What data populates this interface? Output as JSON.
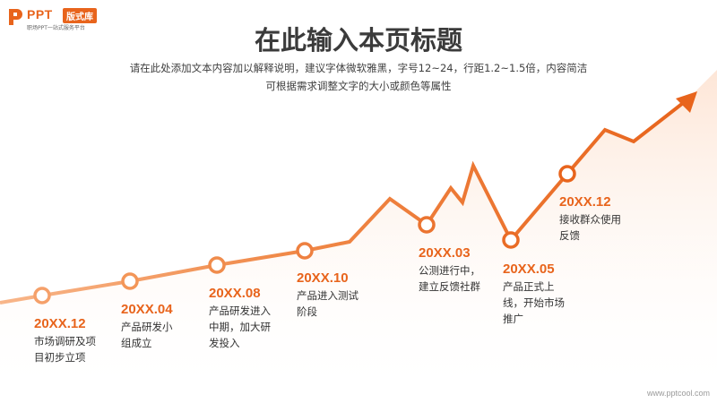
{
  "brand": {
    "name": "PPT",
    "badge": "版式库",
    "slogan": "职场PPT一站式服务平台"
  },
  "header": {
    "title": "在此输入本页标题",
    "subtitle_line1": "请在此处添加文本内容加以解释说明，建议字体微软雅黑，字号12~24，行距1.2~1.5倍，内容简洁",
    "subtitle_line2": "可根据需求调整文字的大小或颜色等属性"
  },
  "colors": {
    "accent": "#e8641c",
    "title": "#3b3b3b",
    "text": "#333333"
  },
  "milestones": [
    {
      "date": "20XX.12",
      "desc": "市场调研及项目初步立项"
    },
    {
      "date": "20XX.04",
      "desc": "产品研发小组成立"
    },
    {
      "date": "20XX.08",
      "desc": "产品研发进入中期，加大研发投入"
    },
    {
      "date": "20XX.10",
      "desc": "产品进入测试阶段"
    },
    {
      "date": "20XX.03",
      "desc": "公测进行中，建立反馈社群"
    },
    {
      "date": "20XX.05",
      "desc": "产品正式上线，开始市场推广"
    },
    {
      "date": "20XX.12",
      "desc": "接收群众使用反馈"
    }
  ],
  "footer": {
    "url": "www.pptcool.com"
  }
}
